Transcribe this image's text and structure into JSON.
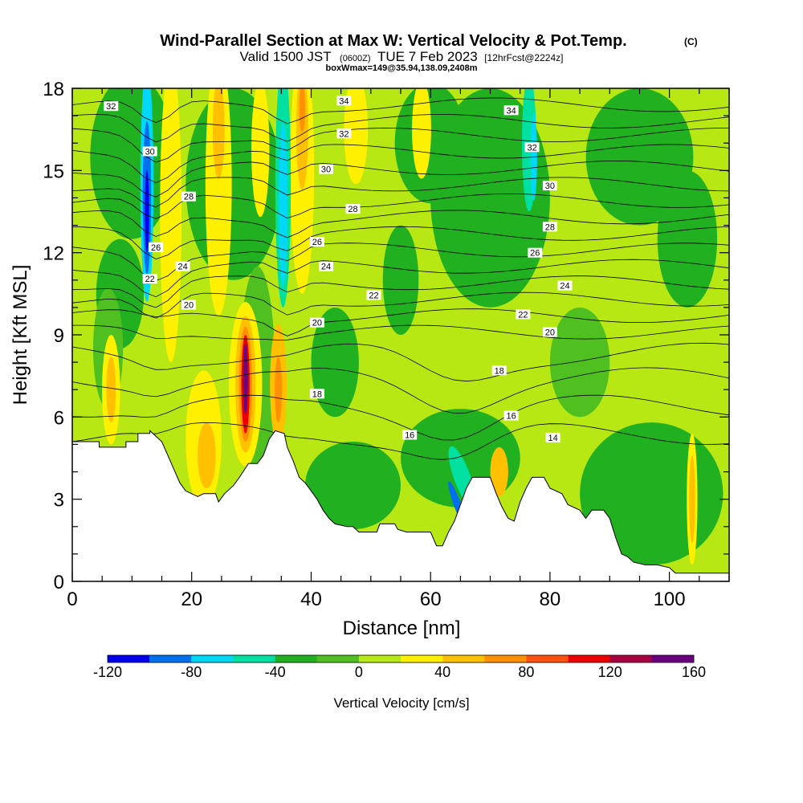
{
  "chart_data": {
    "type": "heatmap",
    "title": {
      "main": "Wind-Parallel Section at Max W: Vertical Velocity & Pot.Temp.",
      "main_units": "(C)",
      "valid_a": "Valid 1500 JST",
      "valid_b": "(0600Z)",
      "valid_c": "TUE 7 Feb 2023",
      "valid_d": "[12hrFcst@2224z]",
      "subtitle": "boxWmax=149@35.94,138.09,2408m"
    },
    "xlabel": "Distance [nm]",
    "ylabel": "Height [Kft MSL]",
    "xlim": [
      0,
      110
    ],
    "ylim": [
      0,
      18
    ],
    "x_ticks": [
      0,
      20,
      40,
      60,
      80,
      100
    ],
    "y_ticks": [
      0,
      3,
      6,
      9,
      12,
      15,
      18
    ],
    "colorbar": {
      "label": "Vertical Velocity [cm/s]",
      "min": -120,
      "max": 160,
      "tick_values": [
        -120,
        -80,
        -40,
        0,
        40,
        80,
        120,
        160
      ],
      "colors": [
        "#0000ee",
        "#0070f0",
        "#00d8f8",
        "#00e0a0",
        "#20b020",
        "#50c020",
        "#b8e814",
        "#fff000",
        "#ffc000",
        "#ff9000",
        "#ff5010",
        "#ee0000",
        "#a80040",
        "#6a0080"
      ]
    },
    "background_color": "#b8e814",
    "contour_field": "Potential temperature [C]",
    "contour_labels": [
      {
        "text": "32",
        "x": 6.5,
        "y": 17.35
      },
      {
        "text": "30",
        "x": 13,
        "y": 15.7
      },
      {
        "text": "28",
        "x": 19.5,
        "y": 14.05
      },
      {
        "text": "26",
        "x": 14,
        "y": 12.2
      },
      {
        "text": "22",
        "x": 13,
        "y": 11.05
      },
      {
        "text": "24",
        "x": 18.5,
        "y": 11.5
      },
      {
        "text": "20",
        "x": 19.5,
        "y": 10.1
      },
      {
        "text": "34",
        "x": 45.5,
        "y": 17.55
      },
      {
        "text": "32",
        "x": 45.5,
        "y": 16.35
      },
      {
        "text": "30",
        "x": 42.5,
        "y": 15.05
      },
      {
        "text": "28",
        "x": 47,
        "y": 13.6
      },
      {
        "text": "26",
        "x": 41,
        "y": 12.4
      },
      {
        "text": "24",
        "x": 42.5,
        "y": 11.5
      },
      {
        "text": "22",
        "x": 50.5,
        "y": 10.45
      },
      {
        "text": "20",
        "x": 41,
        "y": 9.45
      },
      {
        "text": "18",
        "x": 41,
        "y": 6.85
      },
      {
        "text": "16",
        "x": 56.5,
        "y": 5.35
      },
      {
        "text": "34",
        "x": 73.5,
        "y": 17.2
      },
      {
        "text": "32",
        "x": 77,
        "y": 15.85
      },
      {
        "text": "30",
        "x": 80,
        "y": 14.45
      },
      {
        "text": "28",
        "x": 80,
        "y": 12.95
      },
      {
        "text": "26",
        "x": 77.5,
        "y": 12.0
      },
      {
        "text": "24",
        "x": 82.5,
        "y": 10.8
      },
      {
        "text": "22",
        "x": 75.5,
        "y": 9.75
      },
      {
        "text": "20",
        "x": 80,
        "y": 9.1
      },
      {
        "text": "18",
        "x": 71.5,
        "y": 7.7
      },
      {
        "text": "16",
        "x": 73.5,
        "y": 6.05
      },
      {
        "text": "14",
        "x": 80.5,
        "y": 5.25
      }
    ]
  }
}
